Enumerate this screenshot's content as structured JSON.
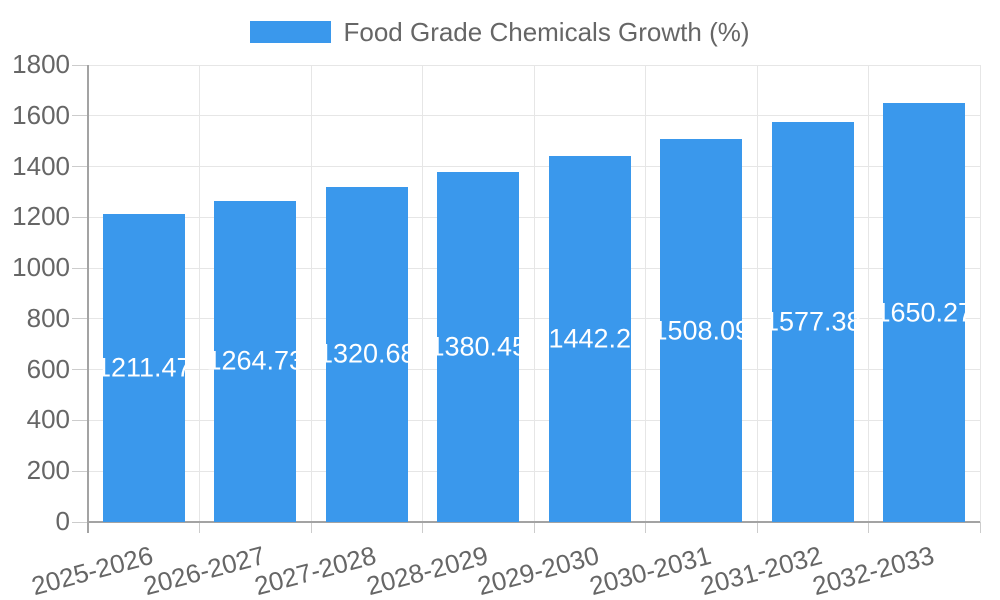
{
  "chart_data": {
    "type": "bar",
    "title": "Food Grade Chemicals Growth (%)",
    "legend_position": "top",
    "categories": [
      "2025-2026",
      "2026-2027",
      "2027-2028",
      "2028-2029",
      "2029-2030",
      "2030-2031",
      "2031-2032",
      "2032-2033"
    ],
    "values": [
      1211.47,
      1264.73,
      1320.68,
      1380.45,
      1442.2,
      1508.09,
      1577.38,
      1650.27
    ],
    "value_labels": [
      "1211.47",
      "1264.73",
      "1320.68",
      "1380.45",
      "1442.2",
      "1508.09",
      "1577.38",
      "1650.27"
    ],
    "xlabel": "",
    "ylabel": "",
    "ylim": [
      0,
      1800
    ],
    "yticks": [
      0,
      200,
      400,
      600,
      800,
      1000,
      1200,
      1400,
      1600,
      1800
    ],
    "grid": true,
    "colors": {
      "bar": "#3A98EC",
      "bar_label": "#FFFFFF",
      "axis_text": "#666666",
      "grid_line": "#E6E6E6",
      "tick_line": "#CCCCCC",
      "axis_line": "#A3A3A3",
      "background": "#FFFFFF"
    }
  }
}
